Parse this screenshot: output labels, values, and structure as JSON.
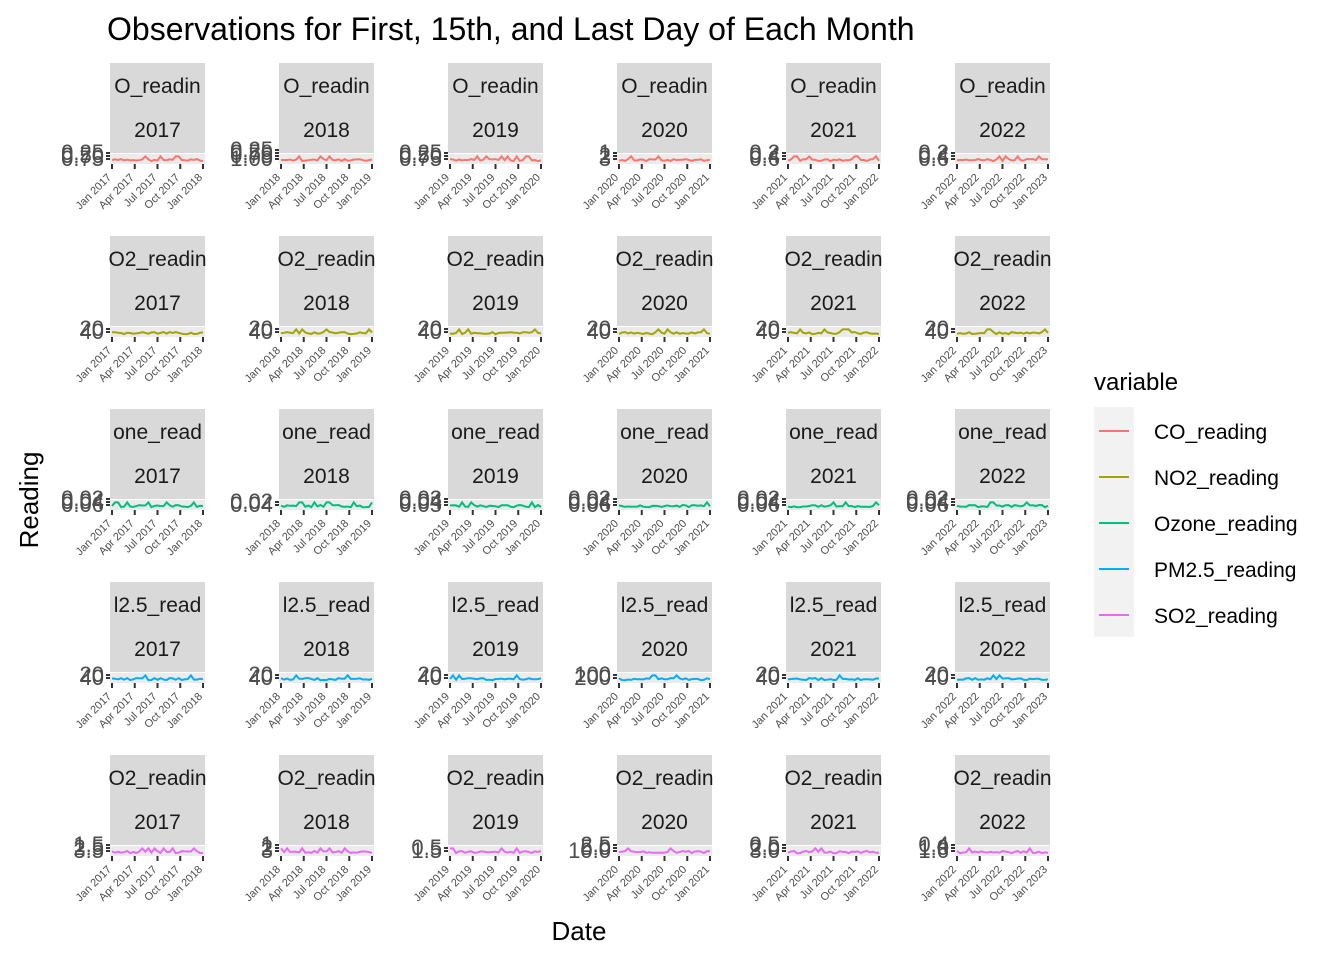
{
  "title": "Observations for First, 15th, and Last Day of Each Month",
  "xlabel": "Date",
  "ylabel": "Reading",
  "legend": {
    "title": "variable",
    "position": "right",
    "items": [
      {
        "label": "CO_reading",
        "color": "#F8766D"
      },
      {
        "label": "NO2_reading",
        "color": "#A3A500"
      },
      {
        "label": "Ozone_reading",
        "color": "#00BF7D"
      },
      {
        "label": "PM2.5_reading",
        "color": "#00B0F6"
      },
      {
        "label": "SO2_reading",
        "color": "#E76BF3"
      }
    ]
  },
  "chart_data": {
    "type": "line",
    "facets": {
      "rows": [
        "CO_reading",
        "NO2_reading",
        "Ozone_reading",
        "PM2.5_reading",
        "SO2_reading"
      ],
      "cols": [
        "2017",
        "2018",
        "2019",
        "2020",
        "2021",
        "2022"
      ],
      "strip_text": [
        [
          "O_readin",
          "O2_readin",
          "one_read",
          "l2.5_read",
          "O2_readin"
        ]
      ],
      "row_strip_labels": [
        "O_readin",
        "O2_readin",
        "one_read",
        "l2.5_read",
        "O2_readin"
      ],
      "x_tick_labels": {
        "2017": [
          "Jan 2017",
          "Apr 2017",
          "Jul 2017",
          "Oct 2017",
          "Jan 2018"
        ],
        "2018": [
          "Jan 2018",
          "Apr 2018",
          "Jul 2018",
          "Oct 2018",
          "Jan 2019"
        ],
        "2019": [
          "Jan 2019",
          "Apr 2019",
          "Jul 2019",
          "Oct 2019",
          "Jan 2020"
        ],
        "2020": [
          "Jan 2020",
          "Apr 2020",
          "Jul 2020",
          "Oct 2020",
          "Jan 2021"
        ],
        "2021": [
          "Jan 2021",
          "Apr 2021",
          "Jul 2021",
          "Oct 2021",
          "Jan 2022"
        ],
        "2022": [
          "Jan 2022",
          "Apr 2022",
          "Jul 2022",
          "Oct 2022",
          "Jan 2023"
        ]
      },
      "y_tick_labels": [
        [
          [
            "0.75",
            "0.50",
            "0.25"
          ],
          [
            "1.00",
            "0.75",
            "0.50",
            "0.25"
          ],
          [
            "0.75",
            "0.50",
            "0.25"
          ],
          [
            "3",
            "2",
            "1"
          ],
          [
            "0.6",
            "0.4",
            "0.2"
          ],
          [
            "0.6",
            "0.4",
            "0.2"
          ]
        ],
        [
          [
            "40",
            "20"
          ],
          [
            "40",
            "20"
          ],
          [
            "40",
            "20"
          ],
          [
            "40",
            "20"
          ],
          [
            "40",
            "20"
          ],
          [
            "40",
            "20"
          ]
        ],
        [
          [
            "0.06",
            "0.04",
            "0.02"
          ],
          [
            "0.04",
            "0.02"
          ],
          [
            "0.05",
            "0.04",
            "0.03"
          ],
          [
            "0.06",
            "0.04",
            "0.02"
          ],
          [
            "0.06",
            "0.04",
            "0.02"
          ],
          [
            "0.06",
            "0.04",
            "0.02"
          ]
        ],
        [
          [
            "40",
            "20"
          ],
          [
            "40",
            "20"
          ],
          [
            "40",
            "20"
          ],
          [
            "200",
            "100"
          ],
          [
            "40",
            "20"
          ],
          [
            "40",
            "20"
          ]
        ],
        [
          [
            "3.5",
            "2.5",
            "1.5"
          ],
          [
            "3",
            "2",
            "1"
          ],
          [
            "1.5",
            "0.5"
          ],
          [
            "10.0",
            "5.0",
            "2.5"
          ],
          [
            "3.0",
            "2.0",
            "0.5"
          ],
          [
            "1.6",
            "1.0",
            "0.4"
          ]
        ]
      ]
    },
    "xlabel": "Date",
    "ylabel": "Reading"
  }
}
